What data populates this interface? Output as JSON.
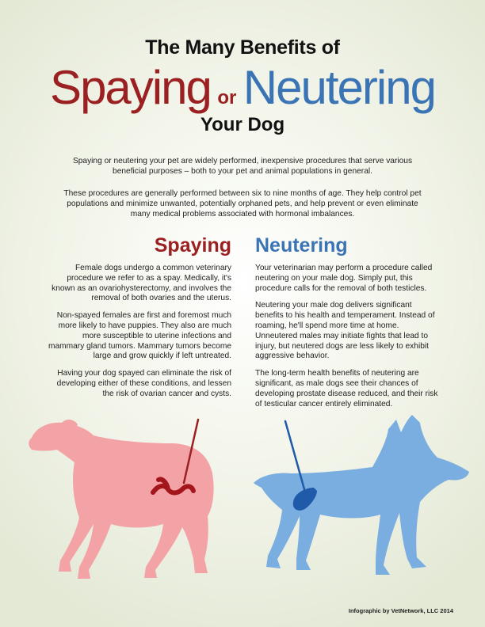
{
  "title": {
    "line1": "The Many Benefits of",
    "spaying": "Spaying",
    "or": "or",
    "neutering": "Neutering",
    "line3": "Your Dog"
  },
  "intro": {
    "p1": "Spaying or neutering your pet are widely performed, inexpensive procedures that serve various beneficial purposes – both to your pet and animal populations in general.",
    "p2": "These procedures are generally performed between six to nine months of age. They help control pet populations and minimize unwanted, potentially orphaned pets, and help prevent or even eliminate many medical problems associated with hormonal imbalances."
  },
  "spaying": {
    "heading": "Spaying",
    "paragraphs": [
      "Female dogs undergo a common veterinary procedure we refer to as a spay. Medically, it's known as an ovariohysterectomy, and involves the removal of both ovaries and the uterus.",
      "Non-spayed females are first and foremost much more likely to have puppies. They also are much more susceptible to uterine infections and mammary gland tumors. Mammary tumors become large and grow quickly if left untreated.",
      "Having your dog spayed can eliminate the risk of developing either of these conditions, and lessen the risk of ovarian cancer and cysts."
    ]
  },
  "neutering": {
    "heading": "Neutering",
    "paragraphs": [
      "Your veterinarian may perform a procedure called neutering on your male dog. Simply put, this procedure calls for the removal of both testicles.",
      "Neutering your male dog delivers significant benefits to his health and temperament. Instead of roaming, he'll spend more time at home. Unneutered males may initiate fights that lead to injury, but neutered dogs are less likely to exhibit aggressive behavior.",
      "The long-term health benefits of neutering are significant, as male dogs see their chances of developing prostate disease reduced, and their risk of testicular cancer entirely eliminated."
    ]
  },
  "credit": "Infographic by VetNetwork, LLC 2014",
  "colors": {
    "spay_red": "#9b2021",
    "neuter_blue": "#3b74b5",
    "female_dog": "#f3a3a6",
    "male_dog": "#7aaee0",
    "uterus": "#a3161c",
    "testicle": "#1f5ba8"
  }
}
